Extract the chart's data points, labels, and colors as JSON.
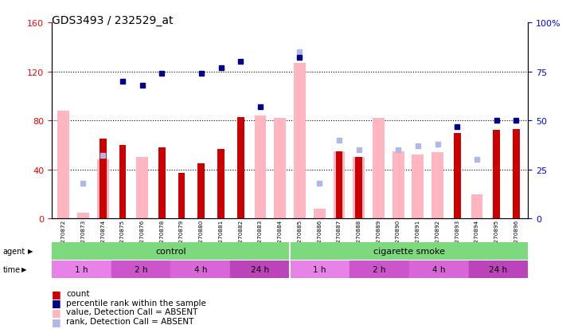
{
  "title": "GDS3493 / 232529_at",
  "samples": [
    "GSM270872",
    "GSM270873",
    "GSM270874",
    "GSM270875",
    "GSM270876",
    "GSM270878",
    "GSM270879",
    "GSM270880",
    "GSM270881",
    "GSM270882",
    "GSM270883",
    "GSM270884",
    "GSM270885",
    "GSM270886",
    "GSM270887",
    "GSM270888",
    "GSM270889",
    "GSM270890",
    "GSM270891",
    "GSM270892",
    "GSM270893",
    "GSM270894",
    "GSM270895",
    "GSM270896"
  ],
  "count_values": [
    null,
    null,
    65,
    60,
    null,
    58,
    37,
    45,
    57,
    83,
    null,
    null,
    null,
    null,
    55,
    50,
    null,
    null,
    null,
    null,
    70,
    null,
    72,
    73
  ],
  "percentile_values": [
    null,
    null,
    null,
    70,
    68,
    74,
    null,
    74,
    77,
    80,
    57,
    null,
    82,
    null,
    null,
    null,
    null,
    null,
    null,
    null,
    47,
    null,
    50,
    50
  ],
  "absent_value_bars": [
    88,
    5,
    48,
    null,
    50,
    null,
    null,
    null,
    null,
    null,
    84,
    82,
    127,
    8,
    55,
    50,
    82,
    55,
    52,
    54,
    null,
    20,
    null,
    null
  ],
  "absent_rank_dots": [
    null,
    18,
    32,
    null,
    null,
    null,
    null,
    null,
    null,
    null,
    null,
    null,
    85,
    18,
    40,
    35,
    null,
    35,
    37,
    38,
    null,
    30,
    null,
    null
  ],
  "ylim_left": [
    0,
    160
  ],
  "ylim_right": [
    0,
    100
  ],
  "yticks_left": [
    0,
    40,
    80,
    120,
    160
  ],
  "yticks_right": [
    0,
    25,
    50,
    75,
    100
  ],
  "bar_color_count": "#cc0000",
  "bar_color_absent_value": "#ffb6c1",
  "dot_color_percentile": "#00008b",
  "dot_color_absent_rank": "#b0b8e8",
  "background_sample_row": "#c8c8c8",
  "agent_color": "#7ed87e",
  "time_colors": [
    "#e882e8",
    "#cc55cc",
    "#d966d9",
    "#bb44bb"
  ],
  "time_labels": [
    "1 h",
    "2 h",
    "4 h",
    "24 h"
  ]
}
